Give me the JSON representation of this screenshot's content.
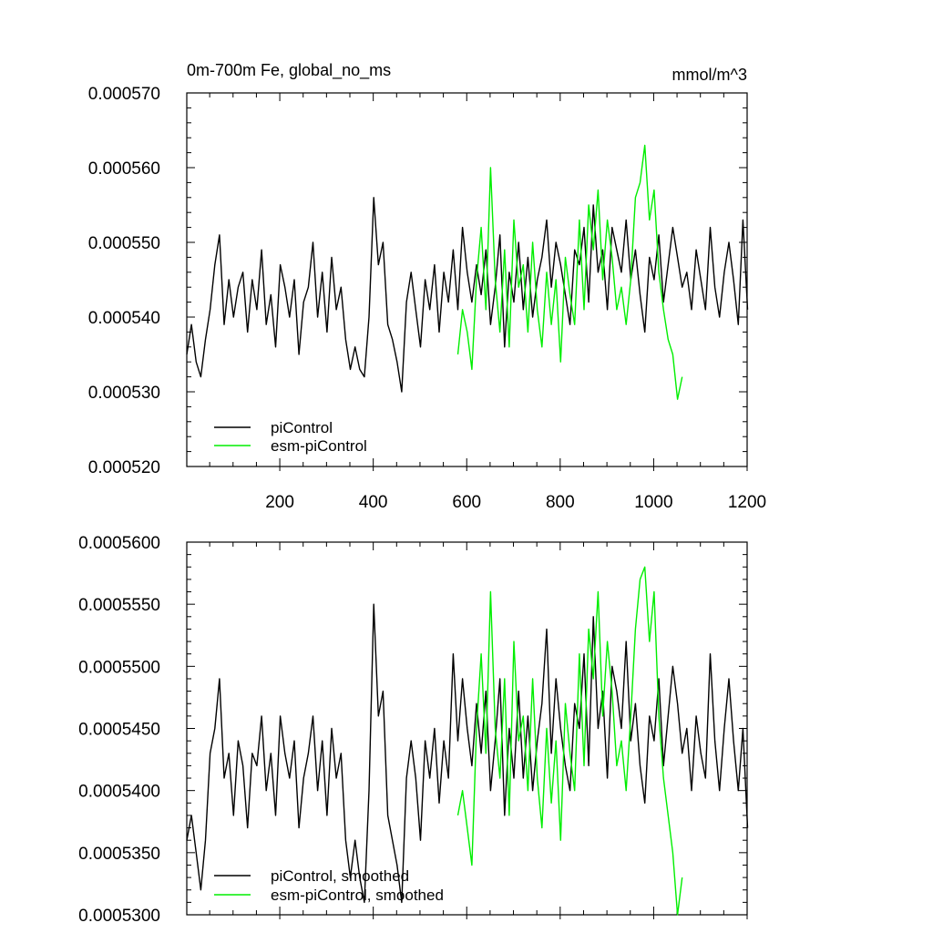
{
  "colors": {
    "pi": "#000000",
    "esm": "#00ee00",
    "axis": "#000000",
    "background": "#ffffff"
  },
  "chart_data": [
    {
      "type": "line",
      "title": "0m-700m Fe, global_no_ms",
      "units": "mmol/m^3",
      "xlabel": "",
      "ylabel": "",
      "xlim": [
        1,
        1200
      ],
      "ylim": [
        0.00052,
        0.00057
      ],
      "x_ticks": [
        200,
        400,
        600,
        800,
        1000,
        1200
      ],
      "x_tick_labels": [
        "200",
        "400",
        "600",
        "800",
        "1000",
        "1200"
      ],
      "y_ticks": [
        0.00052,
        0.00053,
        0.00054,
        0.00055,
        0.00056,
        0.00057
      ],
      "y_tick_labels": [
        "0.000520",
        "0.000530",
        "0.000540",
        "0.000550",
        "0.000560",
        "0.000570"
      ],
      "legend_position": "bottom-left",
      "series": [
        {
          "name": "piControl",
          "color_key": "pi",
          "x_start": 1,
          "x_step": 10,
          "values": [
            0.000535,
            0.000539,
            0.000534,
            0.000532,
            0.000537,
            0.000541,
            0.000547,
            0.000551,
            0.000539,
            0.000545,
            0.00054,
            0.000544,
            0.000546,
            0.000538,
            0.000545,
            0.000541,
            0.000549,
            0.000539,
            0.000543,
            0.000536,
            0.000547,
            0.000544,
            0.00054,
            0.000545,
            0.000535,
            0.000542,
            0.000544,
            0.00055,
            0.00054,
            0.000546,
            0.000538,
            0.000548,
            0.000541,
            0.000544,
            0.000537,
            0.000533,
            0.000536,
            0.000533,
            0.000532,
            0.00054,
            0.000556,
            0.000547,
            0.00055,
            0.000539,
            0.000537,
            0.000534,
            0.00053,
            0.000542,
            0.000546,
            0.000541,
            0.000536,
            0.000545,
            0.000541,
            0.000547,
            0.000538,
            0.000546,
            0.000542,
            0.000549,
            0.000541,
            0.000552,
            0.000546,
            0.000542,
            0.000547,
            0.000543,
            0.000549,
            0.000539,
            0.000544,
            0.000551,
            0.000536,
            0.000546,
            0.000542,
            0.00055,
            0.000541,
            0.000548,
            0.00054,
            0.000545,
            0.000548,
            0.000553,
            0.000544,
            0.00055,
            0.000547,
            0.000543,
            0.000539,
            0.000549,
            0.000547,
            0.000552,
            0.000542,
            0.000555,
            0.000546,
            0.000549,
            0.000541,
            0.000552,
            0.000549,
            0.000546,
            0.000553,
            0.000545,
            0.000549,
            0.000543,
            0.000538,
            0.000548,
            0.000545,
            0.000551,
            0.000542,
            0.000547,
            0.000552,
            0.000548,
            0.000544,
            0.000546,
            0.000541,
            0.000549,
            0.000545,
            0.000541,
            0.000552,
            0.000544,
            0.00054,
            0.000546,
            0.00055,
            0.000545,
            0.000539,
            0.000553,
            0.000541
          ]
        },
        {
          "name": "esm-piControl",
          "color_key": "esm",
          "x_start": 581,
          "x_step": 10,
          "values": [
            0.000535,
            0.000541,
            0.000538,
            0.000533,
            0.000545,
            0.000552,
            0.000541,
            0.00056,
            0.000545,
            0.000538,
            0.000549,
            0.000536,
            0.000553,
            0.000544,
            0.000547,
            0.000538,
            0.00055,
            0.000541,
            0.000536,
            0.000546,
            0.000539,
            0.000545,
            0.000534,
            0.000548,
            0.000543,
            0.000539,
            0.000553,
            0.000541,
            0.000555,
            0.000549,
            0.000557,
            0.000545,
            0.000553,
            0.000548,
            0.000541,
            0.000544,
            0.000539,
            0.000545,
            0.000556,
            0.000558,
            0.000563,
            0.000553,
            0.000557,
            0.000546,
            0.000541,
            0.000537,
            0.000535,
            0.000529,
            0.000532
          ]
        }
      ]
    },
    {
      "type": "line",
      "title": "",
      "units": "",
      "xlabel": "",
      "ylabel": "",
      "xlim": [
        1,
        1200
      ],
      "ylim": [
        0.00053,
        0.00056
      ],
      "x_ticks": [
        200,
        400,
        600,
        800,
        1000,
        1200
      ],
      "x_tick_labels": [],
      "y_ticks": [
        0.00053,
        0.000535,
        0.00054,
        0.000545,
        0.00055,
        0.000555,
        0.00056
      ],
      "y_tick_labels": [
        "0.0005300",
        "0.0005350",
        "0.0005400",
        "0.0005450",
        "0.0005500",
        "0.0005550",
        "0.0005600"
      ],
      "legend_position": "bottom-left",
      "series": [
        {
          "name": "piControl, smoothed",
          "color_key": "pi",
          "x_start": 1,
          "x_step": 10,
          "values": [
            0.000536,
            0.000538,
            0.000535,
            0.000532,
            0.000536,
            0.000543,
            0.000545,
            0.000549,
            0.000541,
            0.000543,
            0.000538,
            0.000544,
            0.000542,
            0.000537,
            0.000543,
            0.000542,
            0.000546,
            0.00054,
            0.000543,
            0.000538,
            0.000546,
            0.000543,
            0.000541,
            0.000544,
            0.000537,
            0.000541,
            0.000543,
            0.000546,
            0.00054,
            0.000544,
            0.000538,
            0.000545,
            0.000541,
            0.000543,
            0.000536,
            0.000533,
            0.000536,
            0.000533,
            0.000531,
            0.00054,
            0.000555,
            0.000546,
            0.000548,
            0.000538,
            0.000536,
            0.000534,
            0.000531,
            0.000541,
            0.000544,
            0.000541,
            0.000536,
            0.000544,
            0.000541,
            0.000545,
            0.000539,
            0.000544,
            0.000541,
            0.000551,
            0.000544,
            0.000549,
            0.000545,
            0.000542,
            0.000547,
            0.000543,
            0.000548,
            0.00054,
            0.000544,
            0.000549,
            0.000538,
            0.000545,
            0.000541,
            0.000548,
            0.000541,
            0.000546,
            0.00054,
            0.000544,
            0.000547,
            0.000553,
            0.000543,
            0.000549,
            0.000545,
            0.000542,
            0.00054,
            0.000547,
            0.000545,
            0.000551,
            0.000542,
            0.000554,
            0.000545,
            0.000548,
            0.000541,
            0.00055,
            0.000548,
            0.000545,
            0.000552,
            0.000544,
            0.000547,
            0.000542,
            0.000539,
            0.000546,
            0.000544,
            0.000549,
            0.000542,
            0.000546,
            0.00055,
            0.000547,
            0.000543,
            0.000545,
            0.00054,
            0.000546,
            0.000543,
            0.000541,
            0.000551,
            0.000544,
            0.00054,
            0.000545,
            0.000549,
            0.000544,
            0.00054,
            0.000545,
            0.000537
          ]
        },
        {
          "name": "esm-piControl, smoothed",
          "color_key": "esm",
          "x_start": 581,
          "x_step": 10,
          "values": [
            0.000538,
            0.00054,
            0.000537,
            0.000534,
            0.000545,
            0.000551,
            0.000543,
            0.000556,
            0.000545,
            0.000541,
            0.000549,
            0.000538,
            0.000552,
            0.000544,
            0.000546,
            0.00054,
            0.000549,
            0.000541,
            0.000537,
            0.000545,
            0.000539,
            0.000544,
            0.000536,
            0.000547,
            0.000543,
            0.00054,
            0.000551,
            0.000542,
            0.000553,
            0.000549,
            0.000556,
            0.000546,
            0.000552,
            0.000548,
            0.000542,
            0.000544,
            0.00054,
            0.000546,
            0.000553,
            0.000557,
            0.000558,
            0.000552,
            0.000556,
            0.000546,
            0.000541,
            0.000538,
            0.000535,
            0.00053,
            0.000533
          ]
        }
      ]
    }
  ]
}
